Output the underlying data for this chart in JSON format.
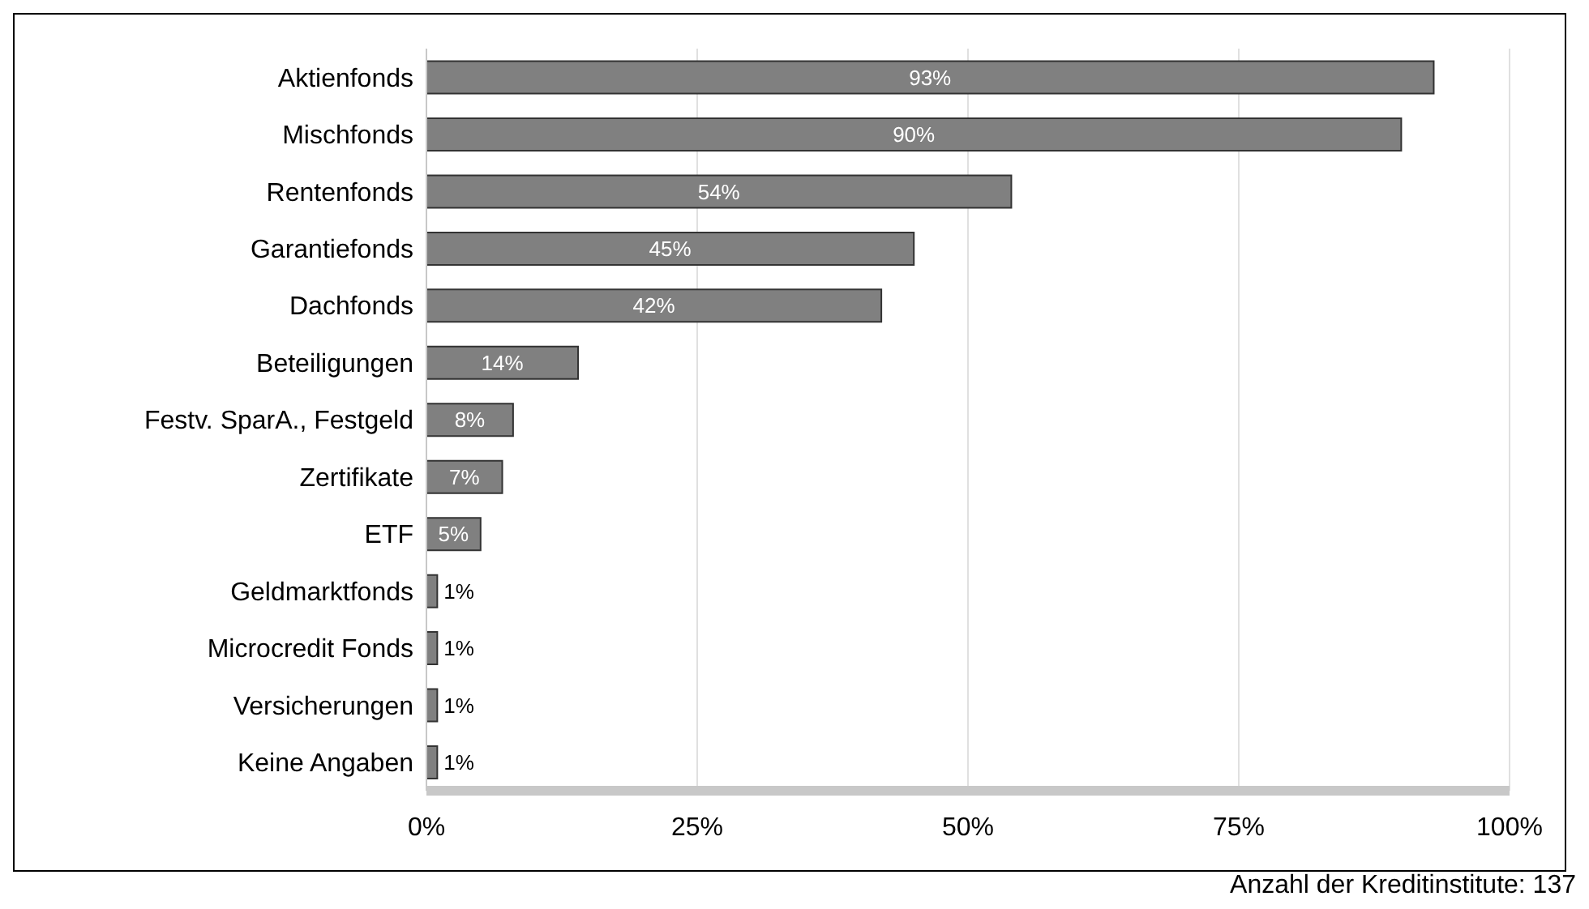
{
  "chart_data": {
    "type": "bar",
    "orientation": "horizontal",
    "categories": [
      "Aktienfonds",
      "Mischfonds",
      "Rentenfonds",
      "Garantiefonds",
      "Dachfonds",
      "Beteiligungen",
      "Festv. SparA., Festgeld",
      "Zertifikate",
      "ETF",
      "Geldmarktfonds",
      "Microcredit Fonds",
      "Versicherungen",
      "Keine Angaben"
    ],
    "values": [
      93,
      90,
      54,
      45,
      42,
      14,
      8,
      7,
      5,
      1,
      1,
      1,
      1
    ],
    "value_labels": [
      "93%",
      "90%",
      "54%",
      "45%",
      "42%",
      "14%",
      "8%",
      "7%",
      "5%",
      "1%",
      "1%",
      "1%",
      "1%"
    ],
    "color": "#808080",
    "xlim": [
      0,
      100
    ],
    "xticks": [
      {
        "value": 0,
        "label": "0%"
      },
      {
        "value": 25,
        "label": "25%"
      },
      {
        "value": 50,
        "label": "50%"
      },
      {
        "value": 75,
        "label": "75%"
      },
      {
        "value": 100,
        "label": "100%"
      }
    ],
    "grid": "x",
    "annotations": [
      "Anzahl der Kreditinstitute: 137"
    ]
  }
}
